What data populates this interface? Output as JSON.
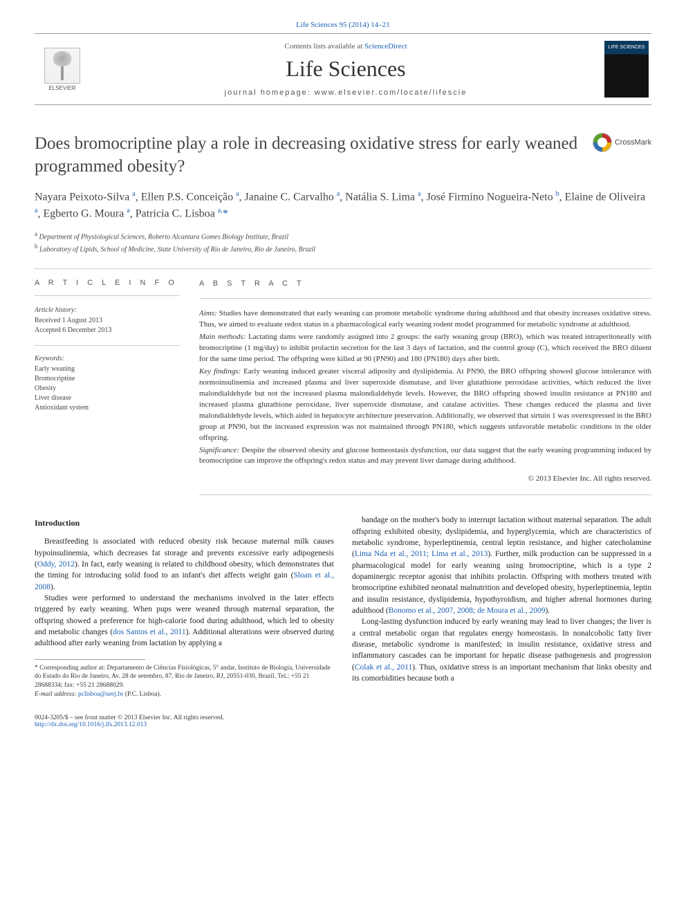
{
  "top_link": "Life Sciences 95 (2014) 14–21",
  "banner": {
    "contents_prefix": "Contents lists available at ",
    "contents_link": "ScienceDirect",
    "journal_title": "Life Sciences",
    "homepage_label": "journal homepage: www.elsevier.com/locate/lifescie",
    "elsevier_label": "ELSEVIER",
    "cover_label": "LIFE SCIENCES"
  },
  "crossmark_label": "CrossMark",
  "title": "Does bromocriptine play a role in decreasing oxidative stress for early weaned programmed obesity?",
  "authors_html": "Nayara Peixoto-Silva <sup>a</sup>, Ellen P.S. Conceição <sup>a</sup>, Janaine C. Carvalho <sup>a</sup>, Natália S. Lima <sup>a</sup>, José Firmino Nogueira-Neto <sup>b</sup>, Elaine de Oliveira <sup>a</sup>, Egberto G. Moura <sup>a</sup>, Patricia C. Lisboa <sup>a,</sup><span class='corr'>*</span>",
  "affiliations": {
    "a": "Department of Physiological Sciences, Roberto Alcantara Gomes Biology Institute, Brazil",
    "b": "Laboratory of Lipids, School of Medicine, State University of Rio de Janeiro, Rio de Janeiro, Brazil"
  },
  "article_info": {
    "heading": "A R T I C L E   I N F O",
    "history_label": "Article history:",
    "received": "Received 1 August 2013",
    "accepted": "Accepted 6 December 2013",
    "keywords_label": "Keywords:",
    "keywords": [
      "Early weaning",
      "Bromocriptine",
      "Obesity",
      "Liver disease",
      "Antioxidant system"
    ]
  },
  "abstract": {
    "heading": "A B S T R A C T",
    "aims_label": "Aims:",
    "aims": "Studies have demonstrated that early weaning can promote metabolic syndrome during adulthood and that obesity increases oxidative stress. Thus, we aimed to evaluate redox status in a pharmacological early weaning rodent model programmed for metabolic syndrome at adulthood.",
    "methods_label": "Main methods:",
    "methods": "Lactating dams were randomly assigned into 2 groups: the early weaning group (BRO), which was treated intraperitoneally with bromocriptine (1 mg/day) to inhibit prolactin secretion for the last 3 days of lactation, and the control group (C), which received the BRO diluent for the same time period. The offspring were killed at 90 (PN90) and 180 (PN180) days after birth.",
    "findings_label": "Key findings:",
    "findings": "Early weaning induced greater visceral adiposity and dyslipidemia. At PN90, the BRO offspring showed glucose intolerance with normoinsulinemia and increased plasma and liver superoxide dismutase, and liver glutathione peroxidase activities, which reduced the liver malondialdehyde but not the increased plasma malondialdehyde levels. However, the BRO offspring showed insulin resistance at PN180 and increased plasma glutathione peroxidase, liver superoxide dismutase, and catalase activities. These changes reduced the plasma and liver malondialdehyde levels, which aided in hepatocyte architecture preservation. Additionally, we observed that sirtuin 1 was overexpressed in the BRO group at PN90, but the increased expression was not maintained through PN180, which suggests unfavorable metabolic conditions in the older offspring.",
    "significance_label": "Significance:",
    "significance": "Despite the observed obesity and glucose homeostasis dysfunction, our data suggest that the early weaning programming induced by bromocriptine can improve the offspring's redox status and may prevent liver damage during adulthood.",
    "copyright": "© 2013 Elsevier Inc. All rights reserved."
  },
  "body": {
    "intro_heading": "Introduction",
    "p1_pre": "Breastfeeding is associated with reduced obesity risk because maternal milk causes hypoinsulinemia, which decreases fat storage and prevents excessive early adipogenesis (",
    "p1_cite1": "Oddy, 2012",
    "p1_mid": "). In fact, early weaning is related to childhood obesity, which demonstrates that the timing for introducing solid food to an infant's diet affects weight gain (",
    "p1_cite2": "Sloan et al., 2008",
    "p1_post": ").",
    "p2_pre": "Studies were performed to understand the mechanisms involved in the later effects triggered by early weaning. When pups were weaned through maternal separation, the offspring showed a preference for high-calorie food during adulthood, which led to obesity and metabolic changes (",
    "p2_cite1": "dos Santos et al., 2011",
    "p2_mid": "). Additional alterations were observed during adulthood after early weaning from lactation by applying a",
    "p3_pre": "bandage on the mother's body to interrupt lactation without maternal separation. The adult offspring exhibited obesity, dyslipidemia, and hyperglycemia, which are characteristics of metabolic syndrome, hyperleptinemia, central leptin resistance, and higher catecholamine (",
    "p3_cite1": "Lima Nda et al., 2011; Lima et al., 2013",
    "p3_mid": "). Further, milk production can be suppressed in a pharmacological model for early weaning using bromocriptine, which is a type 2 dopaminergic receptor agonist that inhibits prolactin. Offspring with mothers treated with bromocriptine exhibited neonatal malnutrition and developed obesity, hyperleptinemia, leptin and insulin resistance, dyslipidemia, hypothyroidism, and higher adrenal hormones during adulthood (",
    "p3_cite2": "Bonomo et al., 2007, 2008; de Moura et al., 2009",
    "p3_post": ").",
    "p4_pre": "Long-lasting dysfunction induced by early weaning may lead to liver changes; the liver is a central metabolic organ that regulates energy homeostasis. In nonalcoholic fatty liver disease, metabolic syndrome is manifested; in insulin resistance, oxidative stress and inflammatory cascades can be important for hepatic disease pathogenesis and progression (",
    "p4_cite1": "Colak et al., 2011",
    "p4_post": "). Thus, oxidative stress is an important mechanism that links obesity and its comorbidities because both a"
  },
  "footnotes": {
    "corr_text": "Corresponding author at: Departamento de Ciências Fisiológicas, 5° andar, Instituto de Biologia, Universidade do Estado do Rio de Janeiro, Av. 28 de setembro, 87, Rio de Janeiro, RJ, 20551-030, Brazil. Tel.: +55 21 28688334; fax: +55 21 28688029.",
    "email_label": "E-mail address:",
    "email": "pclisboa@uerj.br",
    "email_name": "(P.C. Lisboa)."
  },
  "bottom": {
    "left_line1": "0024-3205/$ – see front matter © 2013 Elsevier Inc. All rights reserved.",
    "left_line2": "http://dx.doi.org/10.1016/j.lfs.2013.12.013"
  }
}
